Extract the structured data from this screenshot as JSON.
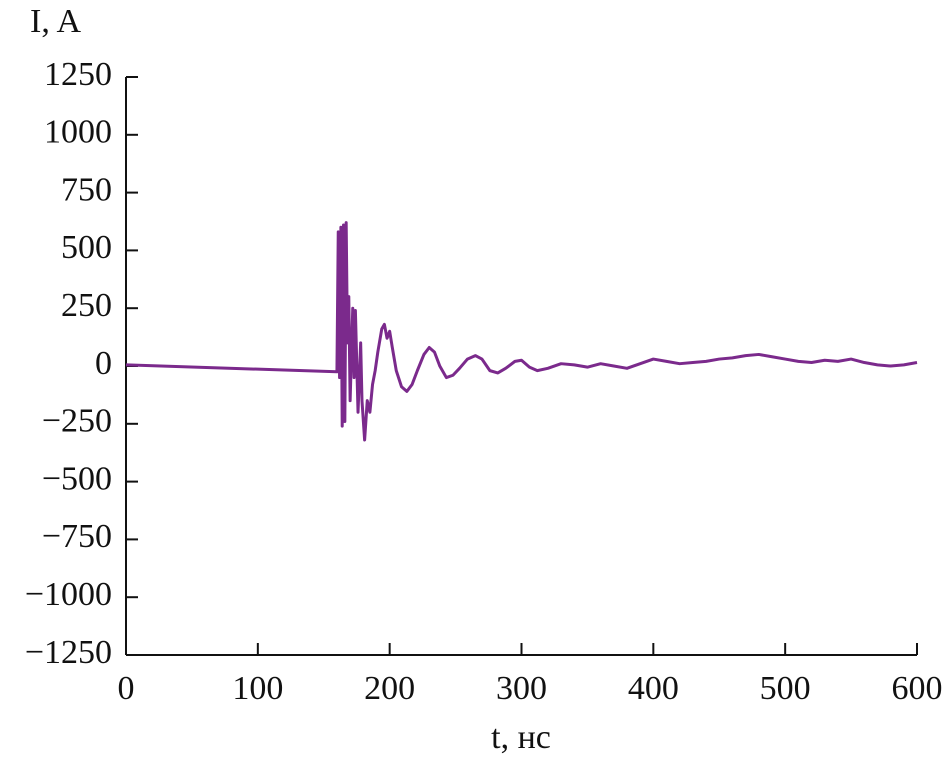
{
  "chart_data": {
    "type": "line",
    "y_label": "I, A",
    "x_label": "t, нс",
    "xlim": [
      0,
      600
    ],
    "ylim": [
      -1250,
      1250
    ],
    "xticks": [
      0,
      100,
      200,
      300,
      400,
      500,
      600
    ],
    "yticks": [
      {
        "value": -1250,
        "label": "−1250"
      },
      {
        "value": -1000,
        "label": "−1000"
      },
      {
        "value": -750,
        "label": "−750"
      },
      {
        "value": -500,
        "label": "−500"
      },
      {
        "value": -250,
        "label": "−250"
      },
      0,
      250,
      500,
      750,
      1000,
      1250
    ],
    "series": [
      {
        "color": "#7b2a8c",
        "x": [
          0,
          160,
          161,
          162,
          163,
          164,
          165,
          166,
          167,
          168,
          169,
          170,
          172,
          173,
          174,
          176,
          178,
          179,
          181,
          183,
          185,
          187,
          189,
          191,
          194,
          196,
          198,
          200,
          202,
          205,
          209,
          213,
          217,
          221,
          226,
          230,
          234,
          238,
          243,
          248,
          253,
          259,
          265,
          270,
          276,
          282,
          288,
          295,
          300,
          306,
          312,
          320,
          330,
          340,
          350,
          360,
          370,
          380,
          390,
          400,
          410,
          420,
          430,
          440,
          450,
          460,
          470,
          480,
          490,
          500,
          510,
          520,
          530,
          540,
          550,
          560,
          570,
          580,
          590,
          600
        ],
        "values": [
          5,
          -25,
          580,
          -50,
          600,
          -260,
          610,
          -240,
          620,
          100,
          300,
          -150,
          250,
          -50,
          240,
          -200,
          100,
          -150,
          -320,
          -150,
          -200,
          -80,
          -20,
          60,
          160,
          180,
          120,
          150,
          80,
          -20,
          -90,
          -110,
          -80,
          -20,
          50,
          80,
          60,
          0,
          -50,
          -40,
          -10,
          30,
          45,
          30,
          -20,
          -30,
          -10,
          20,
          25,
          -5,
          -20,
          -10,
          10,
          5,
          -5,
          10,
          0,
          -10,
          10,
          30,
          20,
          10,
          15,
          20,
          30,
          35,
          45,
          50,
          40,
          30,
          20,
          15,
          25,
          20,
          30,
          15,
          5,
          0,
          5,
          15
        ]
      }
    ]
  }
}
